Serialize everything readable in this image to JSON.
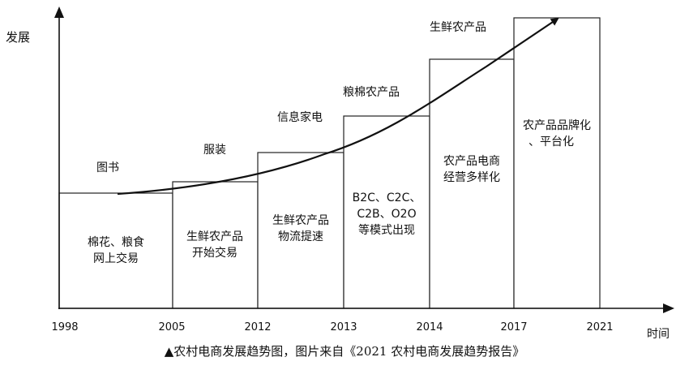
{
  "figure": {
    "y_label": "发展",
    "x_label": "时间",
    "years": [
      "1998",
      "2005",
      "2012",
      "2013",
      "2014",
      "2017",
      "2021"
    ],
    "stages": [
      {
        "inner": [
          "棉花、粮食",
          "网上交易"
        ],
        "top": "图书"
      },
      {
        "inner": [
          "生鲜农产品",
          "开始交易"
        ],
        "top": "服装"
      },
      {
        "inner": [
          "生鲜农产品",
          "物流提速"
        ],
        "top": "信息家电"
      },
      {
        "inner": [
          "B2C、C2C、",
          "C2B、O2O",
          "等模式出现"
        ],
        "top": "粮棉农产品"
      },
      {
        "inner": [
          "农产品电商",
          "经营多样化"
        ],
        "top": "生鲜农产品"
      },
      {
        "inner": [
          "农产品品牌化",
          "、平台化"
        ],
        "top": ""
      }
    ],
    "caption": "▲农村电商发展趋势图，图片来自《2021 农村电商发展趋势报告》"
  }
}
